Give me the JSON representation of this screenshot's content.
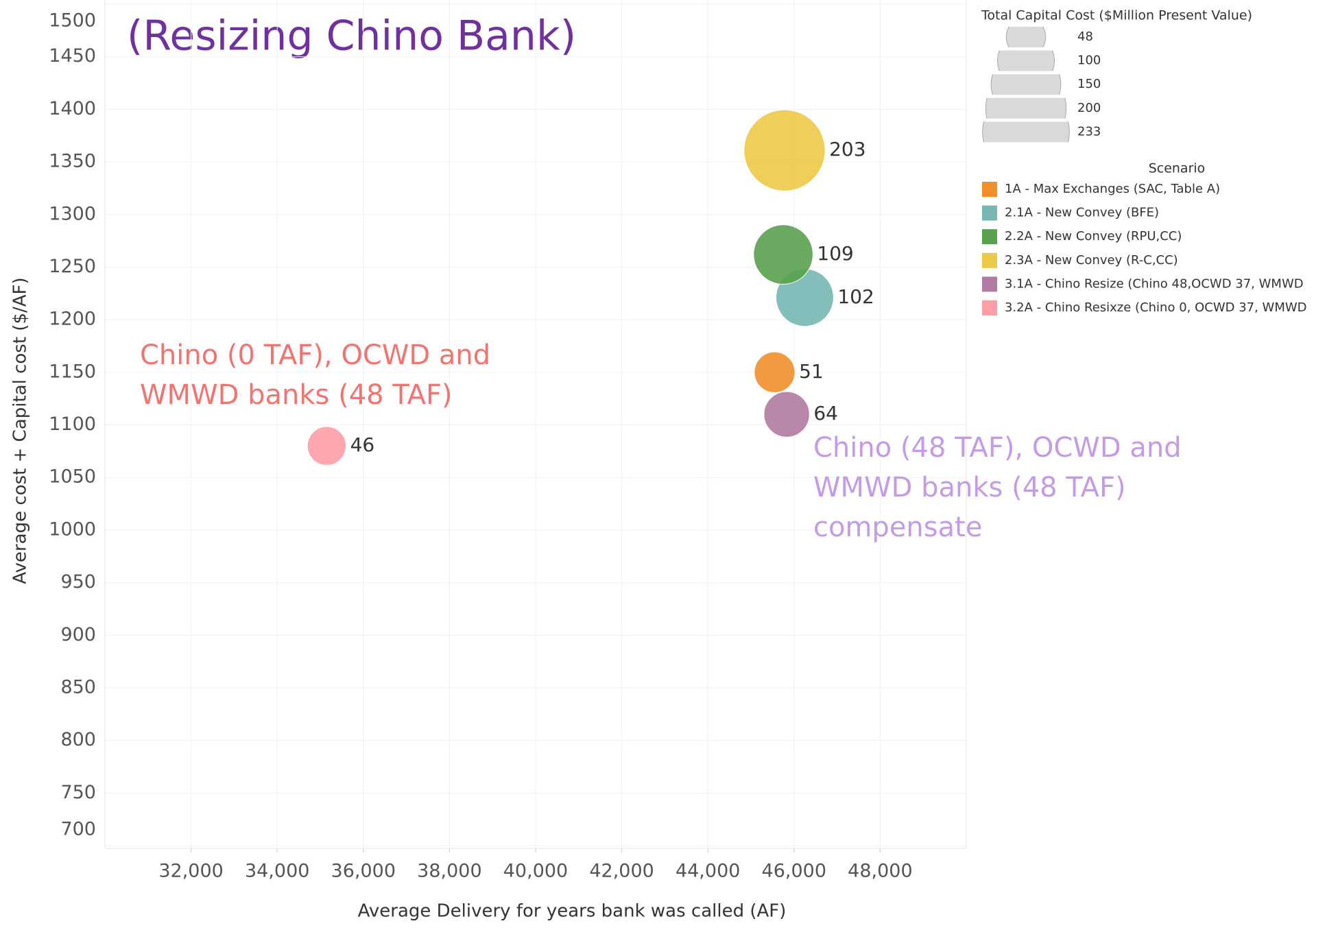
{
  "chart_data": {
    "type": "scatter",
    "title": "(Resizing Chino Bank)",
    "x_label": "Average Delivery for years bank was called (AF)",
    "y_label": "Average cost + Capital cost ($/AF)",
    "xlim": [
      30000,
      50000
    ],
    "xticks": [
      {
        "value": 32000,
        "label": "32,000"
      },
      {
        "value": 34000,
        "label": "34,000"
      },
      {
        "value": 36000,
        "label": "36,000"
      },
      {
        "value": 38000,
        "label": "38,000"
      },
      {
        "value": 40000,
        "label": "40,000"
      },
      {
        "value": 42000,
        "label": "42,000"
      },
      {
        "value": 44000,
        "label": "44,000"
      },
      {
        "value": 46000,
        "label": "46,000"
      },
      {
        "value": 48000,
        "label": "48,000"
      }
    ],
    "ylim": [
      700,
      1500
    ],
    "yticks": [
      700,
      750,
      800,
      850,
      900,
      950,
      1000,
      1050,
      1100,
      1150,
      1200,
      1250,
      1300,
      1350,
      1400,
      1450,
      1500
    ],
    "grid": true,
    "size_legend_title": "Total Capital Cost ($Million Present Value)",
    "size_legend": [
      48,
      100,
      150,
      200,
      233
    ],
    "legend_title": "Scenario",
    "series": [
      {
        "name": "1A - Max Exchanges (SAC, Table A)",
        "color": "#f28e2b",
        "x": [
          45550
        ],
        "values": [
          1150
        ],
        "sizes": [
          51
        ]
      },
      {
        "name": "2.1A - New Convey (BFE)",
        "color": "#76b7b2",
        "x": [
          46250
        ],
        "values": [
          1221
        ],
        "sizes": [
          102
        ]
      },
      {
        "name": "2.2A - New Convey (RPU,CC)",
        "color": "#59a14f",
        "x": [
          45750
        ],
        "values": [
          1262
        ],
        "sizes": [
          109
        ]
      },
      {
        "name": "2.3A - New Convey (R-C,CC)",
        "color": "#edc948",
        "x": [
          45780
        ],
        "values": [
          1361
        ],
        "sizes": [
          203
        ]
      },
      {
        "name": "3.1A - Chino Resize (Chino 48,OCWD 37, WMWD",
        "color": "#b07aa1",
        "x": [
          45830
        ],
        "values": [
          1110
        ],
        "sizes": [
          64
        ]
      },
      {
        "name": "3.2A - Chino Resixze (Chino 0, OCWD 37, WMWD",
        "color": "#ff9da7",
        "x": [
          35150
        ],
        "values": [
          1080
        ],
        "sizes": [
          46
        ]
      }
    ],
    "annotations": [
      {
        "lines": [
          "Chino (0 TAF), OCWD and",
          "WMWD banks (48 TAF)"
        ],
        "color": "#f4736f"
      },
      {
        "lines": [
          "Chino (48 TAF), OCWD and",
          "WMWD banks (48 TAF)",
          "compensate"
        ],
        "color": "#c39be6"
      }
    ]
  }
}
